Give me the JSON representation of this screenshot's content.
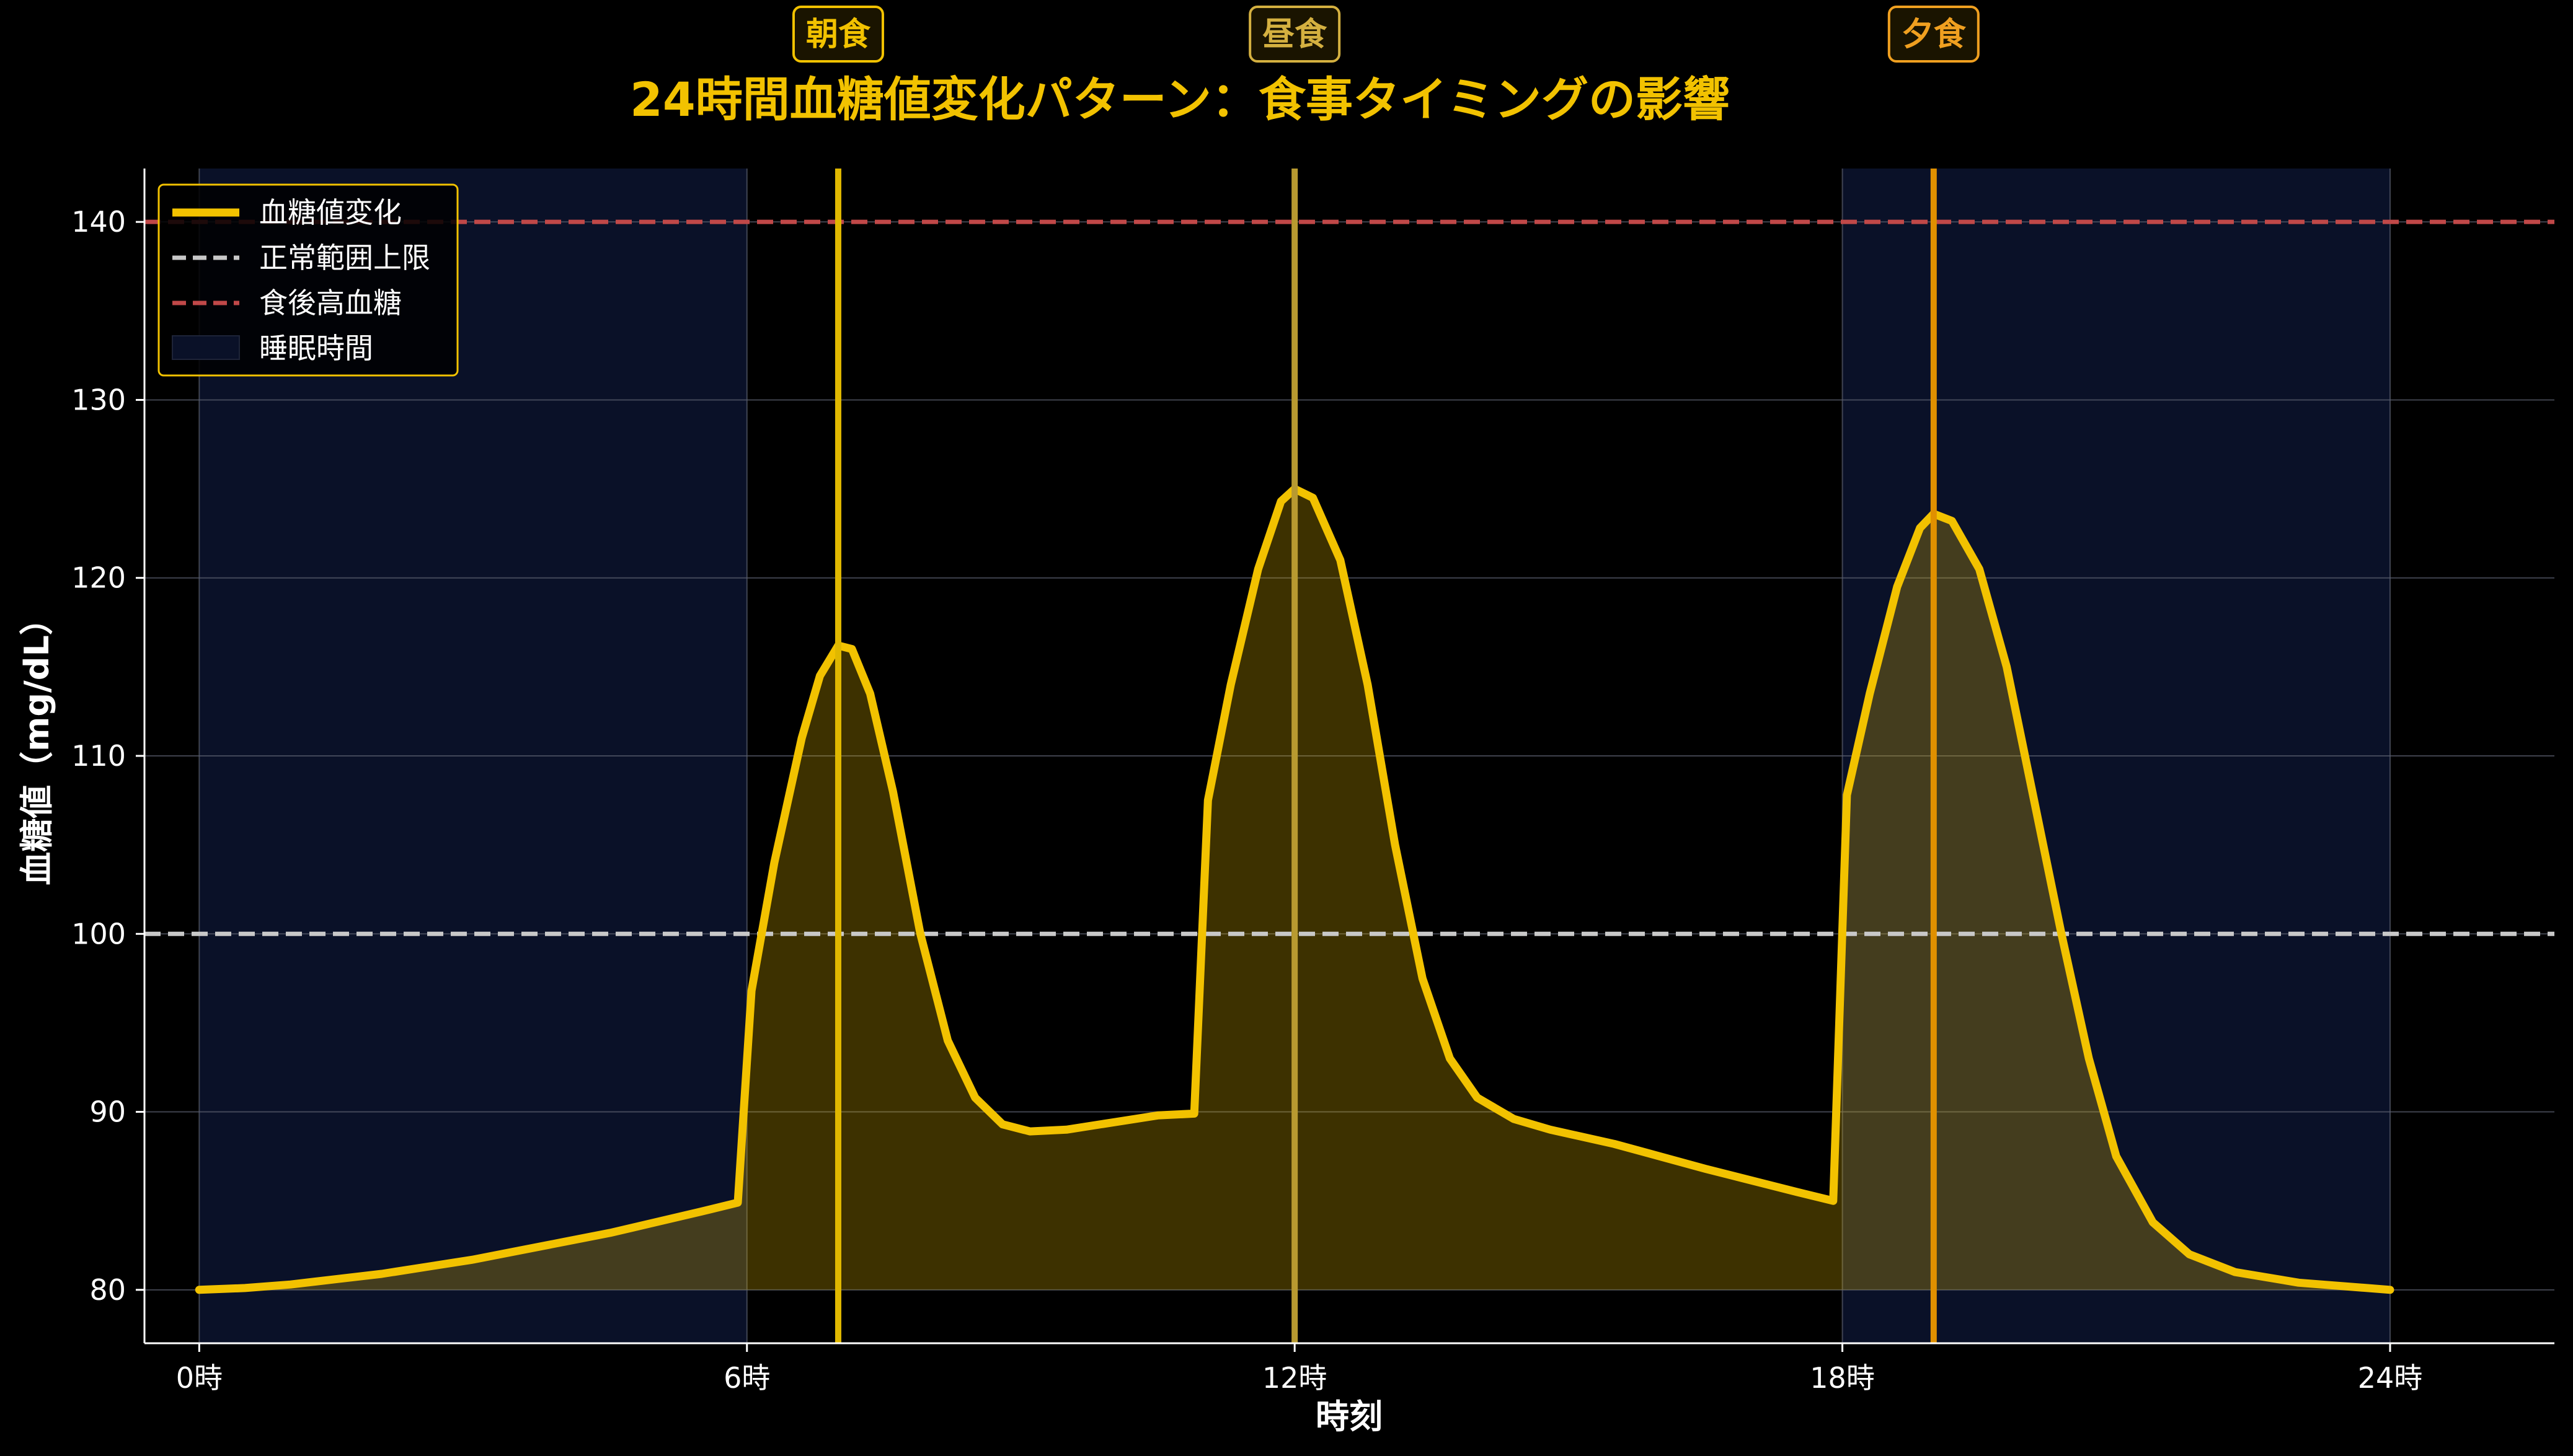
{
  "chart_data": {
    "type": "line",
    "title": "24時間血糖値変化パターン：食事タイミングの影響",
    "xlabel": "時刻",
    "ylabel": "血糖値（mg/dL）",
    "xlim": [
      -0.6,
      25.8
    ],
    "ylim": [
      77,
      143
    ],
    "x_ticks": [
      {
        "value": 0,
        "label": "0時"
      },
      {
        "value": 6,
        "label": "6時"
      },
      {
        "value": 12,
        "label": "12時"
      },
      {
        "value": 18,
        "label": "18時"
      },
      {
        "value": 24,
        "label": "24時"
      }
    ],
    "y_ticks": [
      {
        "value": 80,
        "label": "80"
      },
      {
        "value": 90,
        "label": "90"
      },
      {
        "value": 100,
        "label": "100"
      },
      {
        "value": 110,
        "label": "110"
      },
      {
        "value": 120,
        "label": "120"
      },
      {
        "value": 130,
        "label": "130"
      },
      {
        "value": 140,
        "label": "140"
      }
    ],
    "grid": true,
    "legend_position": "top-left",
    "legend": [
      {
        "label": "血糖値変化",
        "kind": "line",
        "color": "#F2C200"
      },
      {
        "label": "正常範囲上限",
        "kind": "dashed",
        "color": "#C8C8C8"
      },
      {
        "label": "食後高血糖",
        "kind": "dashed",
        "color": "#C04848"
      },
      {
        "label": "睡眠時間",
        "kind": "patch",
        "color": "#0A1128"
      }
    ],
    "thresholds": [
      {
        "name": "正常範囲上限",
        "value": 100,
        "color": "#C8C8C8"
      },
      {
        "name": "食後高血糖",
        "value": 140,
        "color": "#C04848"
      }
    ],
    "sleep_periods": [
      [
        0,
        6
      ],
      [
        18,
        24
      ]
    ],
    "meals": [
      {
        "label": "朝食",
        "x": 7,
        "color": "#E0B800",
        "label_color": "#F2C200"
      },
      {
        "label": "昼食",
        "x": 12,
        "color": "#B89A30",
        "label_color": "#D4B040"
      },
      {
        "label": "夕食",
        "x": 19,
        "color": "#E09000",
        "label_color": "#F0A020"
      }
    ],
    "series": [
      {
        "name": "血糖値変化",
        "color": "#F2C200",
        "x": [
          0,
          0.5,
          1,
          1.5,
          2,
          2.5,
          3,
          3.5,
          4,
          4.5,
          5,
          5.5,
          5.9,
          6.05,
          6.3,
          6.6,
          6.8,
          7.0,
          7.15,
          7.35,
          7.6,
          7.9,
          8.2,
          8.5,
          8.8,
          9.1,
          9.5,
          10,
          10.5,
          10.9,
          11.05,
          11.3,
          11.6,
          11.85,
          12.0,
          12.2,
          12.5,
          12.8,
          13.1,
          13.4,
          13.7,
          14.0,
          14.4,
          14.8,
          15.5,
          16.5,
          17.5,
          17.9,
          18.05,
          18.3,
          18.6,
          18.85,
          19.0,
          19.2,
          19.5,
          19.8,
          20.1,
          20.4,
          20.7,
          21.0,
          21.4,
          21.8,
          22.3,
          23.0,
          24.0
        ],
        "y": [
          80.0,
          80.1,
          80.3,
          80.6,
          80.9,
          81.3,
          81.7,
          82.2,
          82.7,
          83.2,
          83.8,
          84.4,
          84.9,
          96.8,
          104,
          111,
          114.5,
          116.2,
          116.0,
          113.5,
          108,
          100,
          94,
          90.8,
          89.3,
          88.9,
          89.0,
          89.4,
          89.8,
          89.9,
          107.5,
          114,
          120.5,
          124.3,
          125.0,
          124.5,
          121,
          114,
          105,
          97.5,
          93,
          90.8,
          89.6,
          89.0,
          88.2,
          86.8,
          85.5,
          85.0,
          107.8,
          113.5,
          119.5,
          122.8,
          123.6,
          123.2,
          120.5,
          115,
          107.5,
          100,
          93,
          87.5,
          83.8,
          82.0,
          81.0,
          80.4,
          80.0
        ]
      }
    ]
  }
}
